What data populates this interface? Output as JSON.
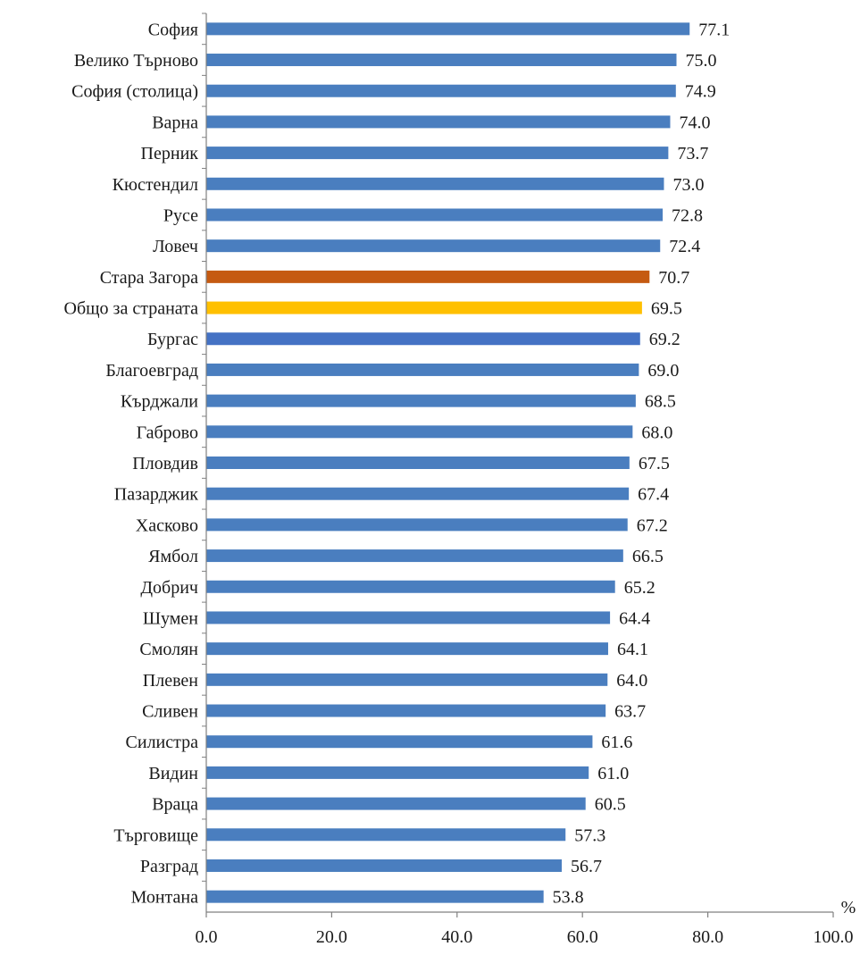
{
  "chart_data": {
    "type": "bar",
    "orientation": "horizontal",
    "categories": [
      "София",
      "Велико Търново",
      "София (столица)",
      "Варна",
      "Перник",
      "Кюстендил",
      "Русе",
      "Ловеч",
      "Стара Загора",
      "Общо за страната",
      "Бургас",
      "Благоевград",
      "Кърджали",
      "Габрово",
      "Пловдив",
      "Пазарджик",
      "Хасково",
      "Ямбол",
      "Добрич",
      "Шумен",
      "Смолян",
      "Плевен",
      "Сливен",
      "Силистра",
      "Видин",
      "Враца",
      "Търговище",
      "Разград",
      "Монтана"
    ],
    "values": [
      77.1,
      75.0,
      74.9,
      74.0,
      73.7,
      73.0,
      72.8,
      72.4,
      70.7,
      69.5,
      69.2,
      69.0,
      68.5,
      68.0,
      67.5,
      67.4,
      67.2,
      66.5,
      65.2,
      64.4,
      64.1,
      64.0,
      63.7,
      61.6,
      61.0,
      60.5,
      57.3,
      56.7,
      53.8
    ],
    "value_labels": [
      "77.1",
      "75.0",
      "74.9",
      "74.0",
      "73.7",
      "73.0",
      "72.8",
      "72.4",
      "70.7",
      "69.5",
      "69.2",
      "69.0",
      "68.5",
      "68.0",
      "67.5",
      "67.4",
      "67.2",
      "66.5",
      "65.2",
      "64.4",
      "64.1",
      "64.0",
      "63.7",
      "61.6",
      "61.0",
      "60.5",
      "57.3",
      "56.7",
      "53.8"
    ],
    "bar_colors": {
      "default": "#4a7ebf",
      "Стара Загора": "#c55a11",
      "Общо за страната": "#ffc000",
      "Бургас": "#4472c4"
    },
    "xlim": [
      0,
      100
    ],
    "x_ticks": [
      0,
      20,
      40,
      60,
      80,
      100
    ],
    "x_tick_labels": [
      "0.0",
      "20.0",
      "40.0",
      "60.0",
      "80.0",
      "100.0"
    ],
    "x_unit_label": "%",
    "title": "",
    "xlabel": "",
    "ylabel": "",
    "grid": false,
    "legend": "none"
  }
}
